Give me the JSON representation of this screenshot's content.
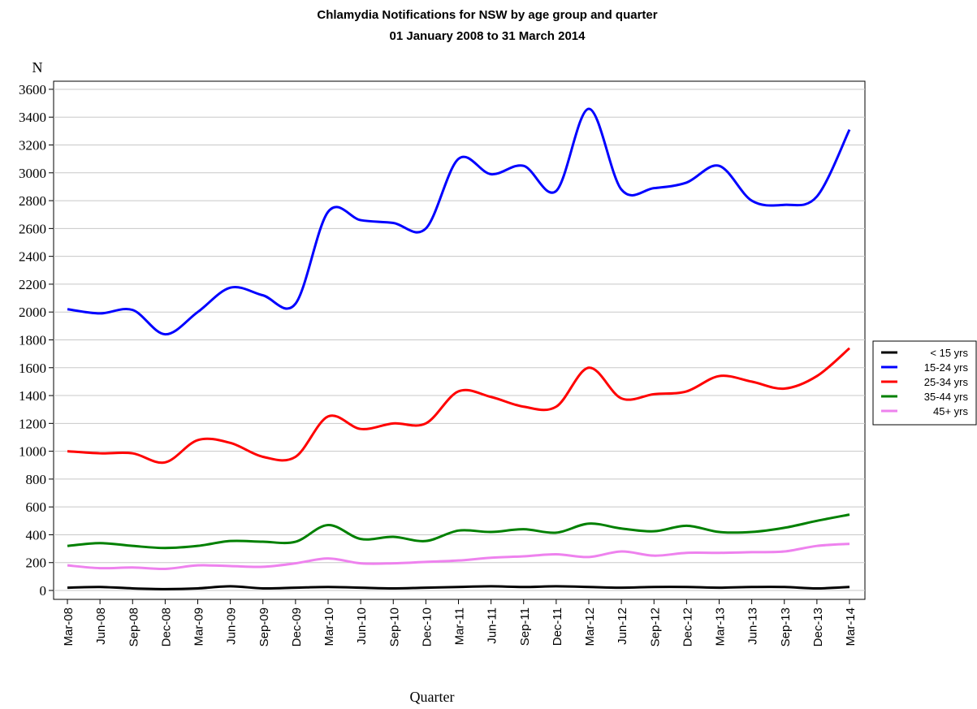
{
  "chart_data": {
    "type": "line",
    "title": "Chlamydia Notifications for NSW by age group and quarter",
    "subtitle": "01 January 2008 to 31 March 2014",
    "xlabel": "Quarter",
    "ylabel": "N",
    "categories": [
      "Mar-08",
      "Jun-08",
      "Sep-08",
      "Dec-08",
      "Mar-09",
      "Jun-09",
      "Sep-09",
      "Dec-09",
      "Mar-10",
      "Jun-10",
      "Sep-10",
      "Dec-10",
      "Mar-11",
      "Jun-11",
      "Sep-11",
      "Dec-11",
      "Mar-12",
      "Jun-12",
      "Sep-12",
      "Dec-12",
      "Mar-13",
      "Jun-13",
      "Sep-13",
      "Dec-13",
      "Mar-14"
    ],
    "series": [
      {
        "name": "< 15 yrs",
        "color": "#000000",
        "values": [
          20,
          25,
          15,
          10,
          15,
          30,
          15,
          20,
          25,
          20,
          15,
          20,
          25,
          30,
          25,
          30,
          25,
          20,
          25,
          25,
          20,
          25,
          25,
          15,
          25
        ]
      },
      {
        "name": "15-24 yrs",
        "color": "#0000ff",
        "values": [
          2020,
          1990,
          2015,
          1840,
          2000,
          2175,
          2120,
          2060,
          2720,
          2660,
          2640,
          2600,
          3100,
          2990,
          3050,
          2870,
          3460,
          2880,
          2890,
          2930,
          3050,
          2800,
          2770,
          2830,
          3310
        ]
      },
      {
        "name": "25-34 yrs",
        "color": "#ff0000",
        "values": [
          1000,
          985,
          985,
          920,
          1080,
          1060,
          960,
          960,
          1250,
          1160,
          1200,
          1200,
          1430,
          1390,
          1320,
          1320,
          1600,
          1380,
          1410,
          1430,
          1540,
          1500,
          1450,
          1540,
          1740
        ]
      },
      {
        "name": "35-44 yrs",
        "color": "#008000",
        "values": [
          320,
          340,
          320,
          305,
          320,
          355,
          350,
          350,
          470,
          370,
          385,
          355,
          430,
          420,
          440,
          415,
          480,
          445,
          425,
          465,
          420,
          420,
          450,
          500,
          545
        ]
      },
      {
        "name": "45+ yrs",
        "color": "#ee82ee",
        "values": [
          180,
          160,
          165,
          155,
          180,
          175,
          170,
          195,
          230,
          195,
          195,
          205,
          215,
          235,
          245,
          260,
          240,
          280,
          250,
          270,
          270,
          275,
          280,
          320,
          335
        ]
      }
    ],
    "ylim": [
      -64,
      3658
    ],
    "yticks": [
      0,
      200,
      400,
      600,
      800,
      1000,
      1200,
      1400,
      1600,
      1800,
      2000,
      2200,
      2400,
      2600,
      2800,
      3000,
      3200,
      3400,
      3600
    ],
    "grid": true,
    "legend": "right"
  }
}
